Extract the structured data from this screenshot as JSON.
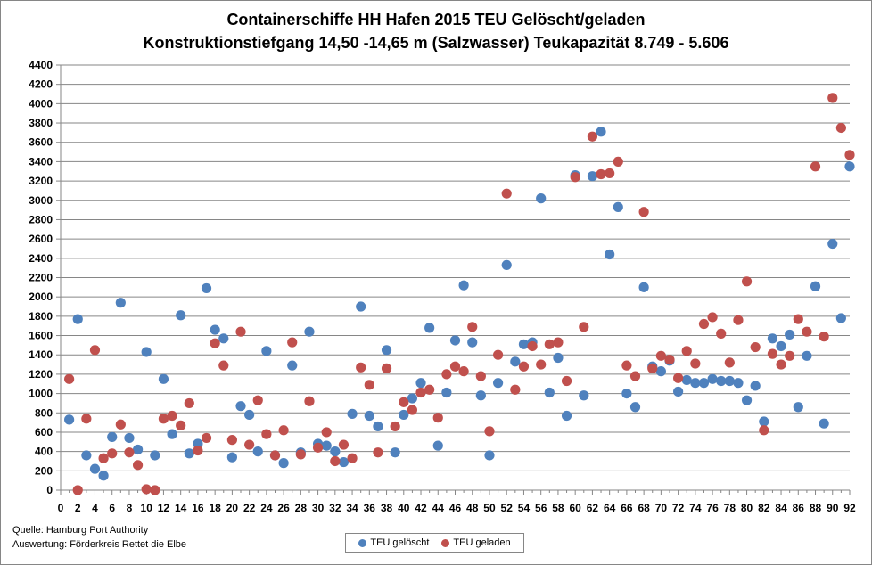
{
  "chart_data": {
    "type": "scatter",
    "title": "Containerschiffe HH Hafen 2015 TEU Gelöscht/geladen",
    "subtitle": "Konstruktionstiefgang  14,50 -14,65 m (Salzwasser)   Teukapazität   8.749 - 5.606",
    "xlim": [
      0,
      92
    ],
    "ylim": [
      0,
      4400
    ],
    "x_ticks": [
      0,
      2,
      4,
      6,
      8,
      10,
      12,
      14,
      16,
      18,
      20,
      22,
      24,
      26,
      28,
      30,
      32,
      34,
      36,
      38,
      40,
      42,
      44,
      46,
      48,
      50,
      52,
      54,
      56,
      58,
      60,
      62,
      64,
      66,
      68,
      70,
      72,
      74,
      76,
      78,
      80,
      82,
      84,
      86,
      88,
      90,
      92
    ],
    "y_ticks": [
      0,
      200,
      400,
      600,
      800,
      1000,
      1200,
      1400,
      1600,
      1800,
      2000,
      2200,
      2400,
      2600,
      2800,
      3000,
      3200,
      3400,
      3600,
      3800,
      4000,
      4200,
      4400
    ],
    "grid": "horizontal",
    "legend_position": "bottom",
    "series": [
      {
        "name": "TEU gelöscht",
        "color": "#4F81BD",
        "x": [
          1,
          2,
          3,
          4,
          5,
          6,
          7,
          8,
          9,
          10,
          11,
          12,
          13,
          14,
          15,
          16,
          17,
          18,
          19,
          20,
          21,
          22,
          23,
          24,
          25,
          26,
          27,
          28,
          29,
          30,
          31,
          32,
          33,
          34,
          35,
          36,
          37,
          38,
          39,
          40,
          41,
          42,
          43,
          44,
          45,
          46,
          47,
          48,
          49,
          50,
          51,
          52,
          53,
          54,
          55,
          56,
          57,
          58,
          59,
          60,
          61,
          62,
          63,
          64,
          65,
          66,
          67,
          68,
          69,
          70,
          71,
          72,
          73,
          74,
          75,
          76,
          77,
          78,
          79,
          80,
          81,
          82,
          83,
          84,
          85,
          86,
          87,
          88,
          89,
          90,
          91,
          92
        ],
        "y": [
          730,
          1770,
          360,
          220,
          150,
          550,
          1940,
          540,
          420,
          1430,
          360,
          1150,
          580,
          1810,
          380,
          480,
          2090,
          1660,
          1570,
          340,
          870,
          780,
          400,
          1440,
          360,
          280,
          1290,
          390,
          1640,
          480,
          460,
          400,
          290,
          790,
          1900,
          770,
          660,
          1450,
          390,
          780,
          950,
          1110,
          1680,
          460,
          1010,
          1550,
          2120,
          1530,
          980,
          360,
          1110,
          2330,
          1330,
          1510,
          1530,
          3020,
          1010,
          1370,
          770,
          3260,
          980,
          3250,
          3710,
          2440,
          2930,
          1000,
          860,
          2100,
          1280,
          1230,
          1340,
          1020,
          1140,
          1110,
          1110,
          1150,
          1130,
          1130,
          1110,
          930,
          1080,
          710,
          1570,
          1490,
          1610,
          860,
          1390,
          2110,
          690,
          2550,
          1780,
          3350
        ]
      },
      {
        "name": "TEU geladen",
        "color": "#C0504D",
        "x": [
          1,
          2,
          3,
          4,
          5,
          6,
          7,
          8,
          9,
          10,
          11,
          12,
          13,
          14,
          15,
          16,
          17,
          18,
          19,
          20,
          21,
          22,
          23,
          24,
          25,
          26,
          27,
          28,
          29,
          30,
          31,
          32,
          33,
          34,
          35,
          36,
          37,
          38,
          39,
          40,
          41,
          42,
          43,
          44,
          45,
          46,
          47,
          48,
          49,
          50,
          51,
          52,
          53,
          54,
          55,
          56,
          57,
          58,
          59,
          60,
          61,
          62,
          63,
          64,
          65,
          66,
          67,
          68,
          69,
          70,
          71,
          72,
          73,
          74,
          75,
          76,
          77,
          78,
          79,
          80,
          81,
          82,
          83,
          84,
          85,
          86,
          87,
          88,
          89,
          90,
          91,
          92
        ],
        "y": [
          1150,
          0,
          740,
          1450,
          330,
          380,
          680,
          390,
          260,
          10,
          0,
          740,
          770,
          670,
          900,
          410,
          540,
          1520,
          1290,
          520,
          1640,
          470,
          930,
          580,
          360,
          620,
          1530,
          370,
          920,
          440,
          600,
          300,
          470,
          330,
          1270,
          1090,
          390,
          1260,
          660,
          910,
          830,
          1010,
          1040,
          750,
          1200,
          1280,
          1230,
          1690,
          1180,
          610,
          1400,
          3070,
          1040,
          1280,
          1490,
          1300,
          1510,
          1530,
          1130,
          3240,
          1690,
          3660,
          3270,
          3280,
          3400,
          1290,
          1180,
          2880,
          1260,
          1390,
          1350,
          1160,
          1440,
          1310,
          1720,
          1790,
          1620,
          1320,
          1760,
          2160,
          1480,
          620,
          1410,
          1300,
          1390,
          1770,
          1640,
          3350,
          1590,
          4060,
          3750,
          3470
        ]
      }
    ]
  },
  "footer": {
    "source_line": "Quelle: Hamburg Port Authority",
    "analysis_line": "Auswertung: Förderkreis Rettet die Elbe"
  }
}
